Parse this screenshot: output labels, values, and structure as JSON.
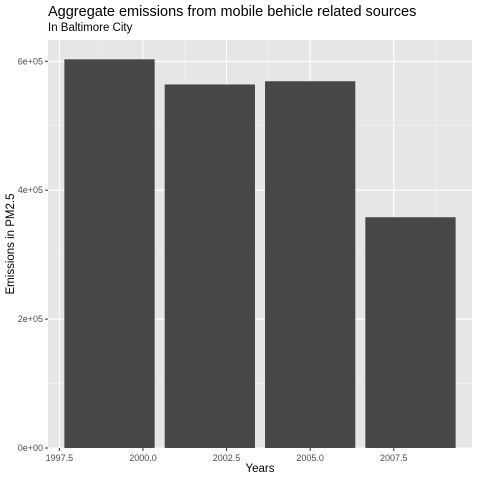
{
  "chart_data": {
    "type": "bar",
    "title": "Aggregate emissions from mobile behicle related sources",
    "subtitle": "In Baltimore City",
    "xlabel": "Years",
    "ylabel": "Emissions in PM2.5",
    "x": [
      1999,
      2002,
      2005,
      2008
    ],
    "values": [
      603000,
      564000,
      569000,
      358000
    ],
    "bar_width_years": 2.7,
    "xlim": [
      1997.16,
      2009.84
    ],
    "ylim": [
      0,
      633000
    ],
    "x_ticks": [
      1997.5,
      2000.0,
      2002.5,
      2005.0,
      2007.5
    ],
    "x_tick_labels": [
      "1997.5",
      "2000.0",
      "2002.5",
      "2005.0",
      "2007.5"
    ],
    "y_ticks": [
      0,
      200000,
      400000,
      600000
    ],
    "y_tick_labels": [
      "0e+00",
      "2e+05",
      "4e+05",
      "6e+05"
    ],
    "grid": true,
    "legend": "none",
    "colors": {
      "bar": "#474747",
      "panel": "#e6e6e6",
      "grid_major": "#ffffff",
      "grid_minor": "#f2f2f2"
    }
  }
}
